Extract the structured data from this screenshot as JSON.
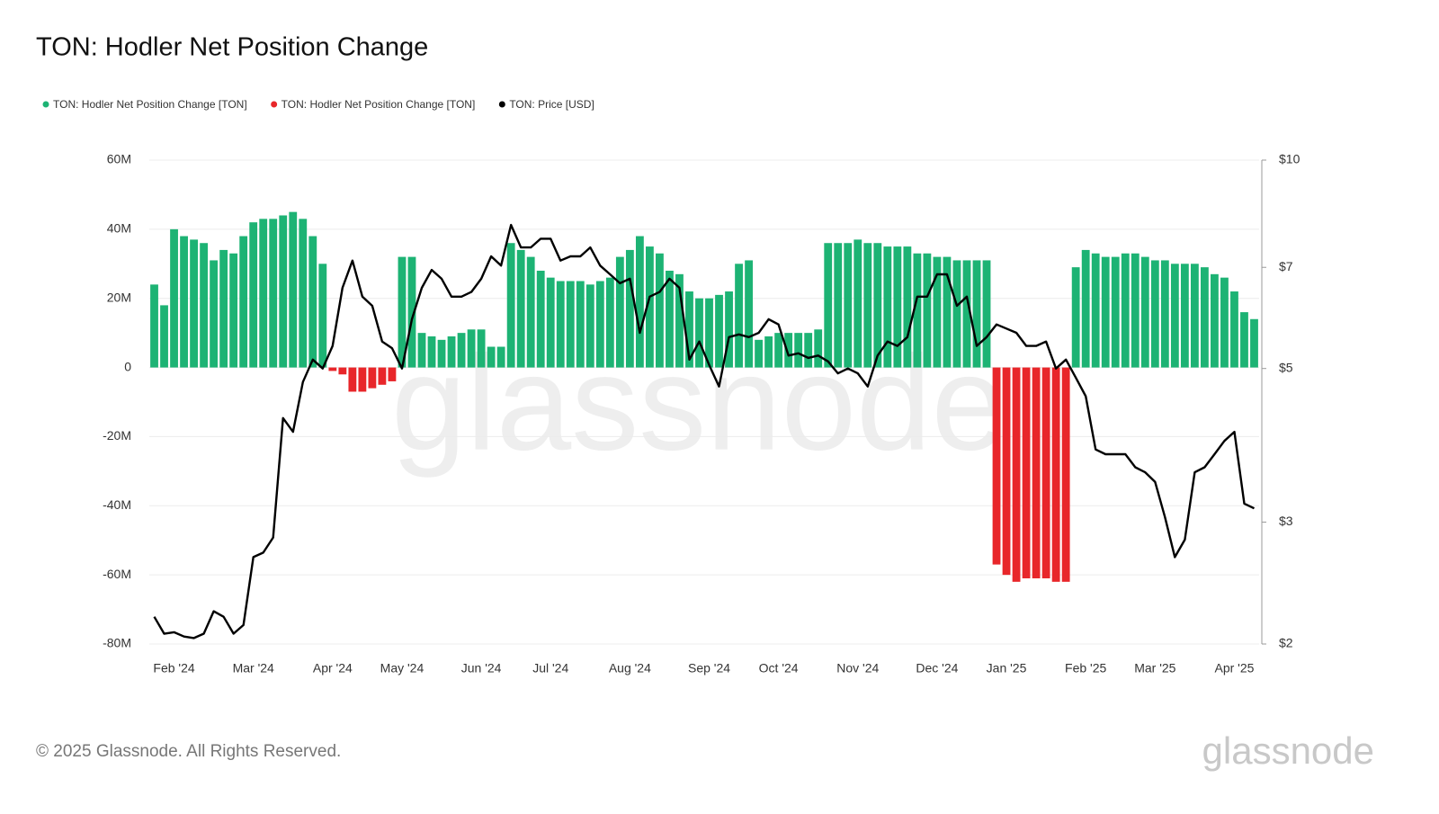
{
  "chart_data": {
    "type": "bar",
    "title": "TON: Hodler Net Position Change",
    "footer": "© 2025 Glassnode. All Rights Reserved.",
    "watermark": "glassnode",
    "categories": [
      null,
      null,
      "Feb '24",
      null,
      null,
      null,
      null,
      null,
      null,
      null,
      "Mar '24",
      null,
      null,
      null,
      null,
      null,
      null,
      null,
      "Apr '24",
      null,
      null,
      null,
      null,
      null,
      null,
      "May '24",
      null,
      null,
      null,
      null,
      null,
      null,
      null,
      "Jun '24",
      null,
      null,
      null,
      null,
      null,
      null,
      "Jul '24",
      null,
      null,
      null,
      null,
      null,
      null,
      null,
      "Aug '24",
      null,
      null,
      null,
      null,
      null,
      null,
      null,
      "Sep '24",
      null,
      null,
      null,
      null,
      null,
      null,
      "Oct '24",
      null,
      null,
      null,
      null,
      null,
      null,
      null,
      "Nov '24",
      null,
      null,
      null,
      null,
      null,
      null,
      null,
      "Dec '24",
      null,
      null,
      null,
      null,
      null,
      null,
      "Jan '25",
      null,
      null,
      null,
      null,
      null,
      null,
      null,
      "Feb '25",
      null,
      null,
      null,
      null,
      null,
      null,
      "Mar '25",
      null,
      null,
      null,
      null,
      null,
      null,
      null,
      "Apr '25",
      null,
      null
    ],
    "ylim": [
      -80000000,
      60000000
    ],
    "yticks": [
      {
        "value": -80000000,
        "label": "-80M"
      },
      {
        "value": -60000000,
        "label": "-60M"
      },
      {
        "value": -40000000,
        "label": "-40M"
      },
      {
        "value": -20000000,
        "label": "-20M"
      },
      0,
      {
        "value": 20000000,
        "label": "20M"
      },
      {
        "value": 40000000,
        "label": "40M"
      },
      {
        "value": 60000000,
        "label": "60M"
      }
    ],
    "y2lim": [
      2,
      10
    ],
    "y2scale": "log",
    "y2ticks": [
      {
        "value": 2,
        "label": "$2"
      },
      {
        "value": 3,
        "label": "$3"
      },
      {
        "value": 5,
        "label": "$5"
      },
      {
        "value": 7,
        "label": "$7"
      },
      {
        "value": 10,
        "label": "$10"
      }
    ],
    "grid": true,
    "legend": "top-left",
    "series": [
      {
        "name": "TON: Hodler Net Position Change [TON]",
        "type": "bar",
        "color": "#1db374",
        "values": [
          24000000,
          18000000,
          40000000,
          38000000,
          37000000,
          36000000,
          31000000,
          34000000,
          33000000,
          38000000,
          42000000,
          43000000,
          43000000,
          44000000,
          45000000,
          43000000,
          38000000,
          30000000,
          null,
          null,
          null,
          null,
          null,
          null,
          null,
          32000000,
          32000000,
          10000000,
          9000000,
          8000000,
          9000000,
          10000000,
          11000000,
          11000000,
          6000000,
          6000000,
          36000000,
          34000000,
          32000000,
          28000000,
          26000000,
          25000000,
          25000000,
          25000000,
          24000000,
          25000000,
          26000000,
          32000000,
          34000000,
          38000000,
          35000000,
          33000000,
          28000000,
          27000000,
          22000000,
          20000000,
          20000000,
          21000000,
          22000000,
          30000000,
          31000000,
          8000000,
          9000000,
          10000000,
          10000000,
          10000000,
          10000000,
          11000000,
          36000000,
          36000000,
          36000000,
          37000000,
          36000000,
          36000000,
          35000000,
          35000000,
          35000000,
          33000000,
          33000000,
          32000000,
          32000000,
          31000000,
          31000000,
          31000000,
          31000000,
          null,
          null,
          null,
          null,
          null,
          null,
          null,
          null,
          29000000,
          34000000,
          33000000,
          32000000,
          32000000,
          33000000,
          33000000,
          32000000,
          31000000,
          31000000,
          30000000,
          30000000,
          30000000,
          29000000,
          27000000,
          26000000,
          22000000,
          16000000,
          14000000
        ]
      },
      {
        "name": "TON: Hodler Net Position Change [TON]",
        "type": "bar",
        "color": "#e8262a",
        "values": [
          null,
          null,
          null,
          null,
          null,
          null,
          null,
          null,
          null,
          null,
          null,
          null,
          null,
          null,
          null,
          null,
          null,
          null,
          -1000000,
          -2000000,
          -7000000,
          -7000000,
          -6000000,
          -5000000,
          -4000000,
          null,
          null,
          null,
          null,
          null,
          null,
          null,
          null,
          null,
          null,
          null,
          null,
          null,
          null,
          null,
          null,
          null,
          null,
          null,
          null,
          null,
          null,
          null,
          null,
          null,
          null,
          null,
          null,
          null,
          null,
          null,
          null,
          null,
          null,
          null,
          null,
          null,
          null,
          null,
          null,
          null,
          null,
          null,
          null,
          null,
          null,
          null,
          null,
          null,
          null,
          null,
          null,
          null,
          null,
          null,
          null,
          null,
          null,
          null,
          null,
          -57000000,
          -60000000,
          -62000000,
          -61000000,
          -61000000,
          -61000000,
          -62000000,
          -62000000,
          null,
          null,
          null,
          null,
          null,
          null,
          null,
          null,
          null,
          null,
          null,
          null,
          null,
          null,
          null,
          null,
          null,
          null,
          null
        ]
      },
      {
        "name": "TON: Price [USD]",
        "type": "line",
        "axis": "y2",
        "color": "#000000",
        "values": [
          2.19,
          2.07,
          2.08,
          2.05,
          2.04,
          2.07,
          2.23,
          2.19,
          2.07,
          2.13,
          2.67,
          2.71,
          2.85,
          4.24,
          4.05,
          4.78,
          5.15,
          5.0,
          5.39,
          6.54,
          7.16,
          6.35,
          6.16,
          5.47,
          5.35,
          5.0,
          5.89,
          6.54,
          6.94,
          6.74,
          6.35,
          6.35,
          6.45,
          6.74,
          7.26,
          7.04,
          8.06,
          7.48,
          7.48,
          7.7,
          7.7,
          7.16,
          7.26,
          7.26,
          7.48,
          7.04,
          6.84,
          6.64,
          6.74,
          5.63,
          6.35,
          6.45,
          6.74,
          6.54,
          5.15,
          5.47,
          5.06,
          4.71,
          5.55,
          5.6,
          5.55,
          5.63,
          5.89,
          5.79,
          5.22,
          5.26,
          5.18,
          5.22,
          5.12,
          4.92,
          5.0,
          4.92,
          4.71,
          5.22,
          5.47,
          5.39,
          5.55,
          6.35,
          6.35,
          6.84,
          6.84,
          6.16,
          6.35,
          5.39,
          5.55,
          5.79,
          5.71,
          5.63,
          5.39,
          5.39,
          5.47,
          5.0,
          5.15,
          4.85,
          4.56,
          3.82,
          3.76,
          3.76,
          3.76,
          3.6,
          3.54,
          3.43,
          3.05,
          2.67,
          2.83,
          3.54,
          3.6,
          3.76,
          3.93,
          4.05,
          3.19,
          3.14
        ]
      }
    ]
  }
}
